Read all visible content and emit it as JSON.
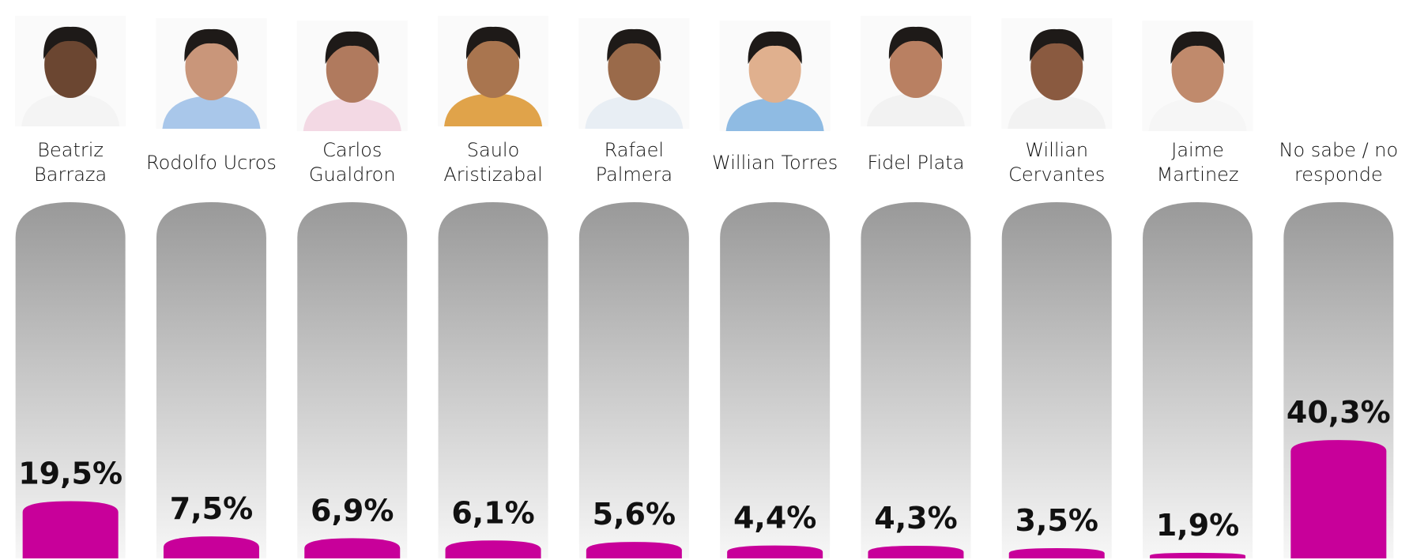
{
  "chart_data": {
    "type": "bar",
    "categories": [
      "Beatriz Barraza",
      "Rodolfo Ucros",
      "Carlos Gualdron",
      "Saulo Aristizabal",
      "Rafael Palmera",
      "Willian Torres",
      "Fidel Plata",
      "Willian Cervantes",
      "Jaime Martinez",
      "No sabe / no responde"
    ],
    "values": [
      19.5,
      7.5,
      6.9,
      6.1,
      5.6,
      4.4,
      4.3,
      3.5,
      1.9,
      40.3
    ],
    "value_labels": [
      "19,5%",
      "7,5%",
      "6,9%",
      "6,1%",
      "5,6%",
      "4,4%",
      "4,3%",
      "3,5%",
      "1,9%",
      "40,3%"
    ],
    "color": "#c8009a"
  }
}
